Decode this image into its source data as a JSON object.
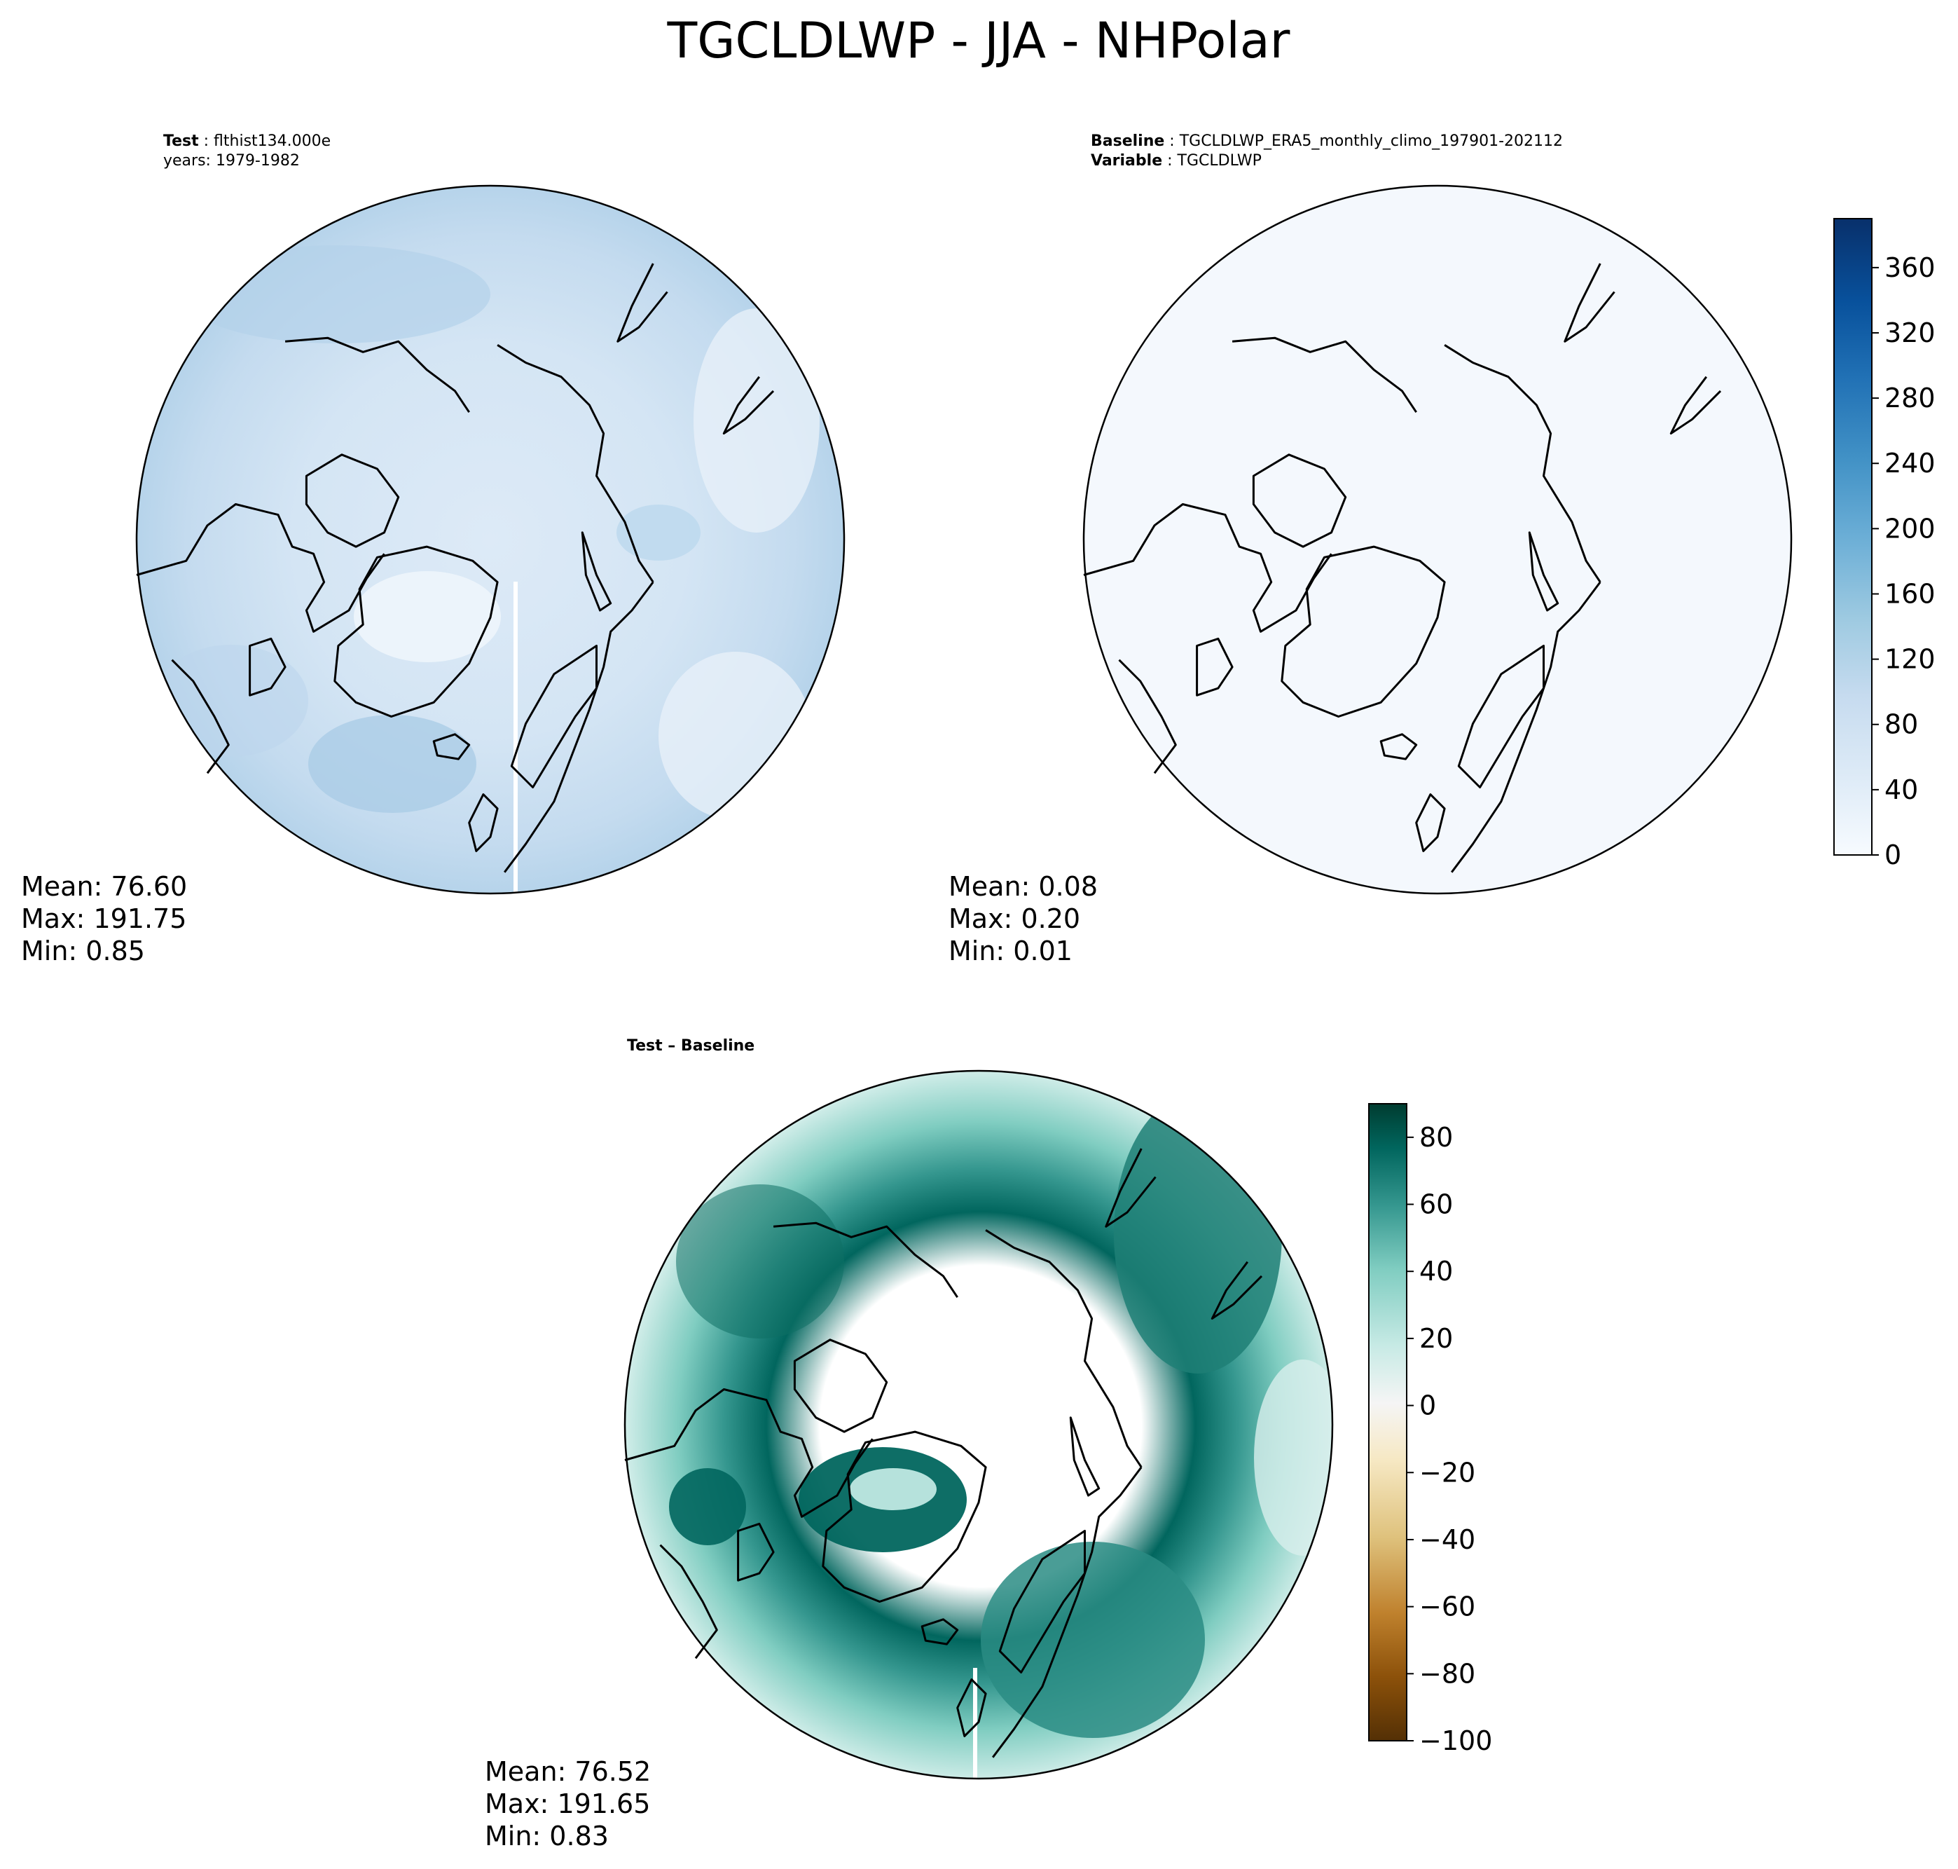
{
  "title": "TGCLDLWP - JJA - NHPolar",
  "panels": {
    "test": {
      "label_key": "Test",
      "label_value": "flthist134.000e",
      "label_line2": "years: 1979-1982",
      "stats": [
        "Mean: 76.60",
        "Max: 191.75",
        "Min:  0.85"
      ]
    },
    "baseline": {
      "label_key": "Baseline",
      "label_value": "TGCLDLWP_ERA5_monthly_climo_197901-202112",
      "label2_key": "Variable",
      "label2_value": "TGCLDLWP",
      "stats": [
        "Mean:  0.08",
        "Max:  0.20",
        "Min:  0.01"
      ]
    },
    "diff": {
      "label": "Test – Baseline",
      "stats": [
        "Mean: 76.52",
        "Max: 191.65",
        "Min:  0.83"
      ]
    }
  },
  "chart_data": [
    {
      "type": "heatmap",
      "projection": "north-polar-stereographic",
      "field": "test",
      "colormap": "Blues",
      "colorbar_ticks": [
        "0",
        "40",
        "80",
        "120",
        "160",
        "200",
        "240",
        "280",
        "320",
        "360"
      ],
      "colorbar_range": [
        0,
        390
      ],
      "mean": 76.6,
      "max": 191.75,
      "min": 0.85
    },
    {
      "type": "heatmap",
      "projection": "north-polar-stereographic",
      "field": "baseline",
      "colormap": "Blues",
      "colorbar_ticks": [
        "0",
        "40",
        "80",
        "120",
        "160",
        "200",
        "240",
        "280",
        "320",
        "360"
      ],
      "colorbar_range": [
        0,
        390
      ],
      "mean": 0.08,
      "max": 0.2,
      "min": 0.01
    },
    {
      "type": "heatmap",
      "projection": "north-polar-stereographic",
      "field": "difference",
      "colormap": "BrBG",
      "colorbar_ticks": [
        "80",
        "60",
        "40",
        "20",
        "0",
        "−20",
        "−40",
        "−60",
        "−80",
        "−100"
      ],
      "colorbar_range": [
        -100,
        90
      ],
      "mean": 76.52,
      "max": 191.65,
      "min": 0.83
    }
  ],
  "colors": {
    "blues": [
      "#f7fbff",
      "#deebf7",
      "#c6dbef",
      "#9ecae1",
      "#6baed6",
      "#4292c6",
      "#2171b5",
      "#08519c",
      "#08306b"
    ],
    "brbg": [
      "#543005",
      "#8c510a",
      "#bf812d",
      "#dfc27d",
      "#f6e8c3",
      "#f5f5f5",
      "#c7eae5",
      "#80cdc1",
      "#35978f",
      "#01665e",
      "#003c30"
    ],
    "baseline_fill": "#f4f8fd"
  }
}
